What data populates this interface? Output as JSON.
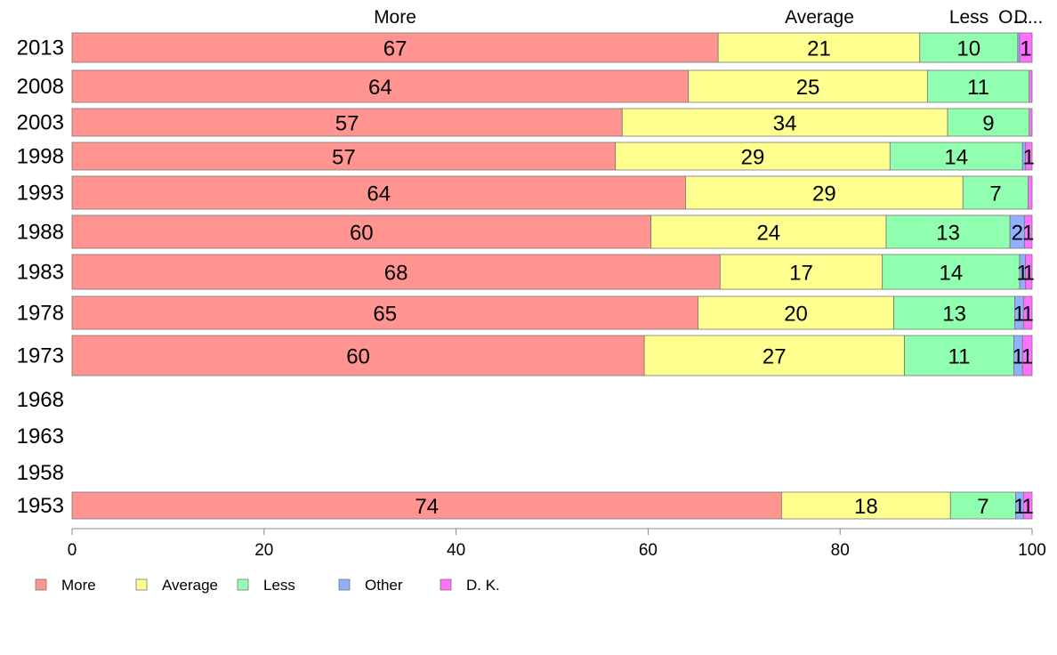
{
  "chart_data": {
    "type": "bar",
    "orientation": "horizontal",
    "stacked": true,
    "percent": true,
    "title": "",
    "xlabel": "",
    "ylabel": "",
    "xlim": [
      0,
      100
    ],
    "x_ticks": [
      "0",
      "20",
      "40",
      "60",
      "80",
      "100"
    ],
    "grid": false,
    "legend_position": "bottom-left",
    "top_labels": [
      "More",
      "Average",
      "Less",
      "O...",
      "D..."
    ],
    "categories": [
      "2013",
      "2008",
      "2003",
      "1998",
      "1993",
      "1988",
      "1983",
      "1978",
      "1973",
      "1968",
      "1963",
      "1958",
      "1953"
    ],
    "series": [
      {
        "name": "More",
        "color": "#FF9490",
        "values": [
          67.3,
          64.2,
          57.3,
          56.6,
          63.9,
          60.3,
          67.5,
          65.2,
          59.6,
          null,
          null,
          null,
          73.9
        ],
        "labels": [
          "67",
          "64",
          "57",
          "57",
          "64",
          "60",
          "68",
          "65",
          "60",
          "",
          "",
          "",
          "74"
        ]
      },
      {
        "name": "Average",
        "color": "#FFFF90",
        "values": [
          21.0,
          24.9,
          33.9,
          28.6,
          28.9,
          24.5,
          16.9,
          20.4,
          27.1,
          null,
          null,
          null,
          17.6
        ],
        "labels": [
          "21",
          "25",
          "34",
          "29",
          "29",
          "24",
          "17",
          "20",
          "27",
          "",
          "",
          "",
          "18"
        ]
      },
      {
        "name": "Less",
        "color": "#90FFB0",
        "values": [
          10.2,
          10.6,
          8.5,
          13.8,
          6.8,
          12.9,
          14.3,
          12.6,
          11.4,
          null,
          null,
          null,
          6.8
        ],
        "labels": [
          "10",
          "11",
          "9",
          "14",
          "7",
          "13",
          "14",
          "13",
          "11",
          "",
          "",
          "",
          "7"
        ]
      },
      {
        "name": "Other",
        "color": "#90B0FF",
        "values": [
          0.2,
          0.0,
          0.0,
          0.3,
          0.0,
          1.5,
          0.6,
          0.9,
          0.9,
          null,
          null,
          null,
          0.8
        ],
        "labels": [
          "",
          "",
          "",
          "",
          "",
          "2",
          "1",
          "1",
          "1",
          "",
          "",
          "",
          "1"
        ]
      },
      {
        "name": "D. K.",
        "color": "#FF70FF",
        "values": [
          1.3,
          0.3,
          0.3,
          0.7,
          0.4,
          0.8,
          0.7,
          0.9,
          1.0,
          null,
          null,
          null,
          0.9
        ],
        "labels": [
          "1",
          "",
          "",
          "1",
          "",
          "1",
          "1",
          "1",
          "1",
          "",
          "",
          "",
          "1"
        ]
      }
    ]
  }
}
